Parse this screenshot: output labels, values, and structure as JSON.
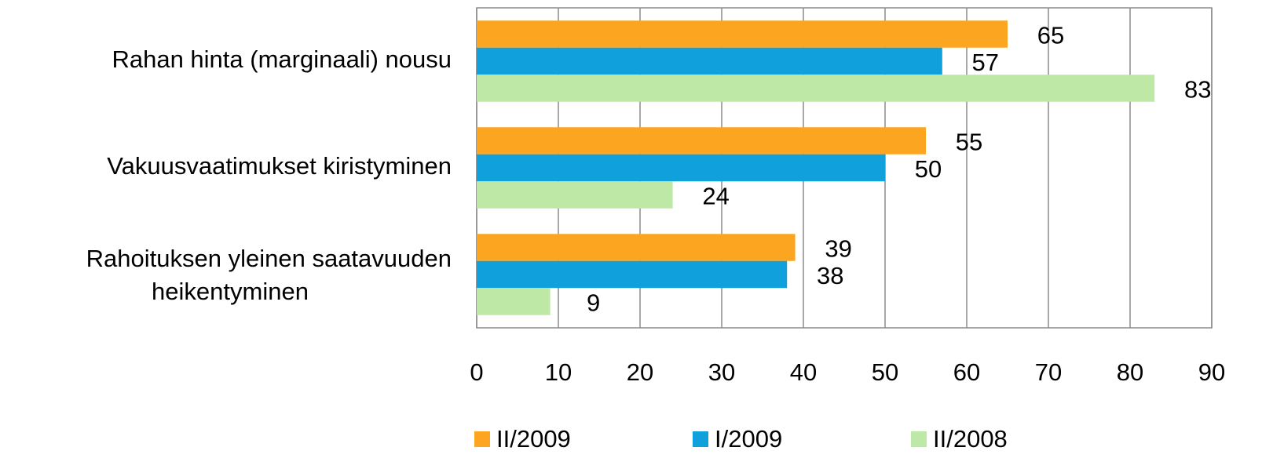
{
  "chart_data": {
    "type": "bar",
    "orientation": "horizontal",
    "categories": [
      "Rahan hinta (marginaali) nousu",
      "Vakuusvaatimukset kiristyminen",
      "Rahoituksen yleinen saatavuuden heikentyminen"
    ],
    "series": [
      {
        "name": "II/2009",
        "color": "#fca521",
        "values": [
          65,
          55,
          39
        ]
      },
      {
        "name": "I/2009",
        "color": "#10a1dd",
        "values": [
          57,
          50,
          38
        ]
      },
      {
        "name": "II/2008",
        "color": "#bde8a5",
        "values": [
          83,
          24,
          9
        ]
      }
    ],
    "xlim": [
      0,
      90
    ],
    "xticks": [
      0,
      10,
      20,
      30,
      40,
      50,
      60,
      70,
      80,
      90
    ],
    "grid": true,
    "legend": "bottom"
  }
}
